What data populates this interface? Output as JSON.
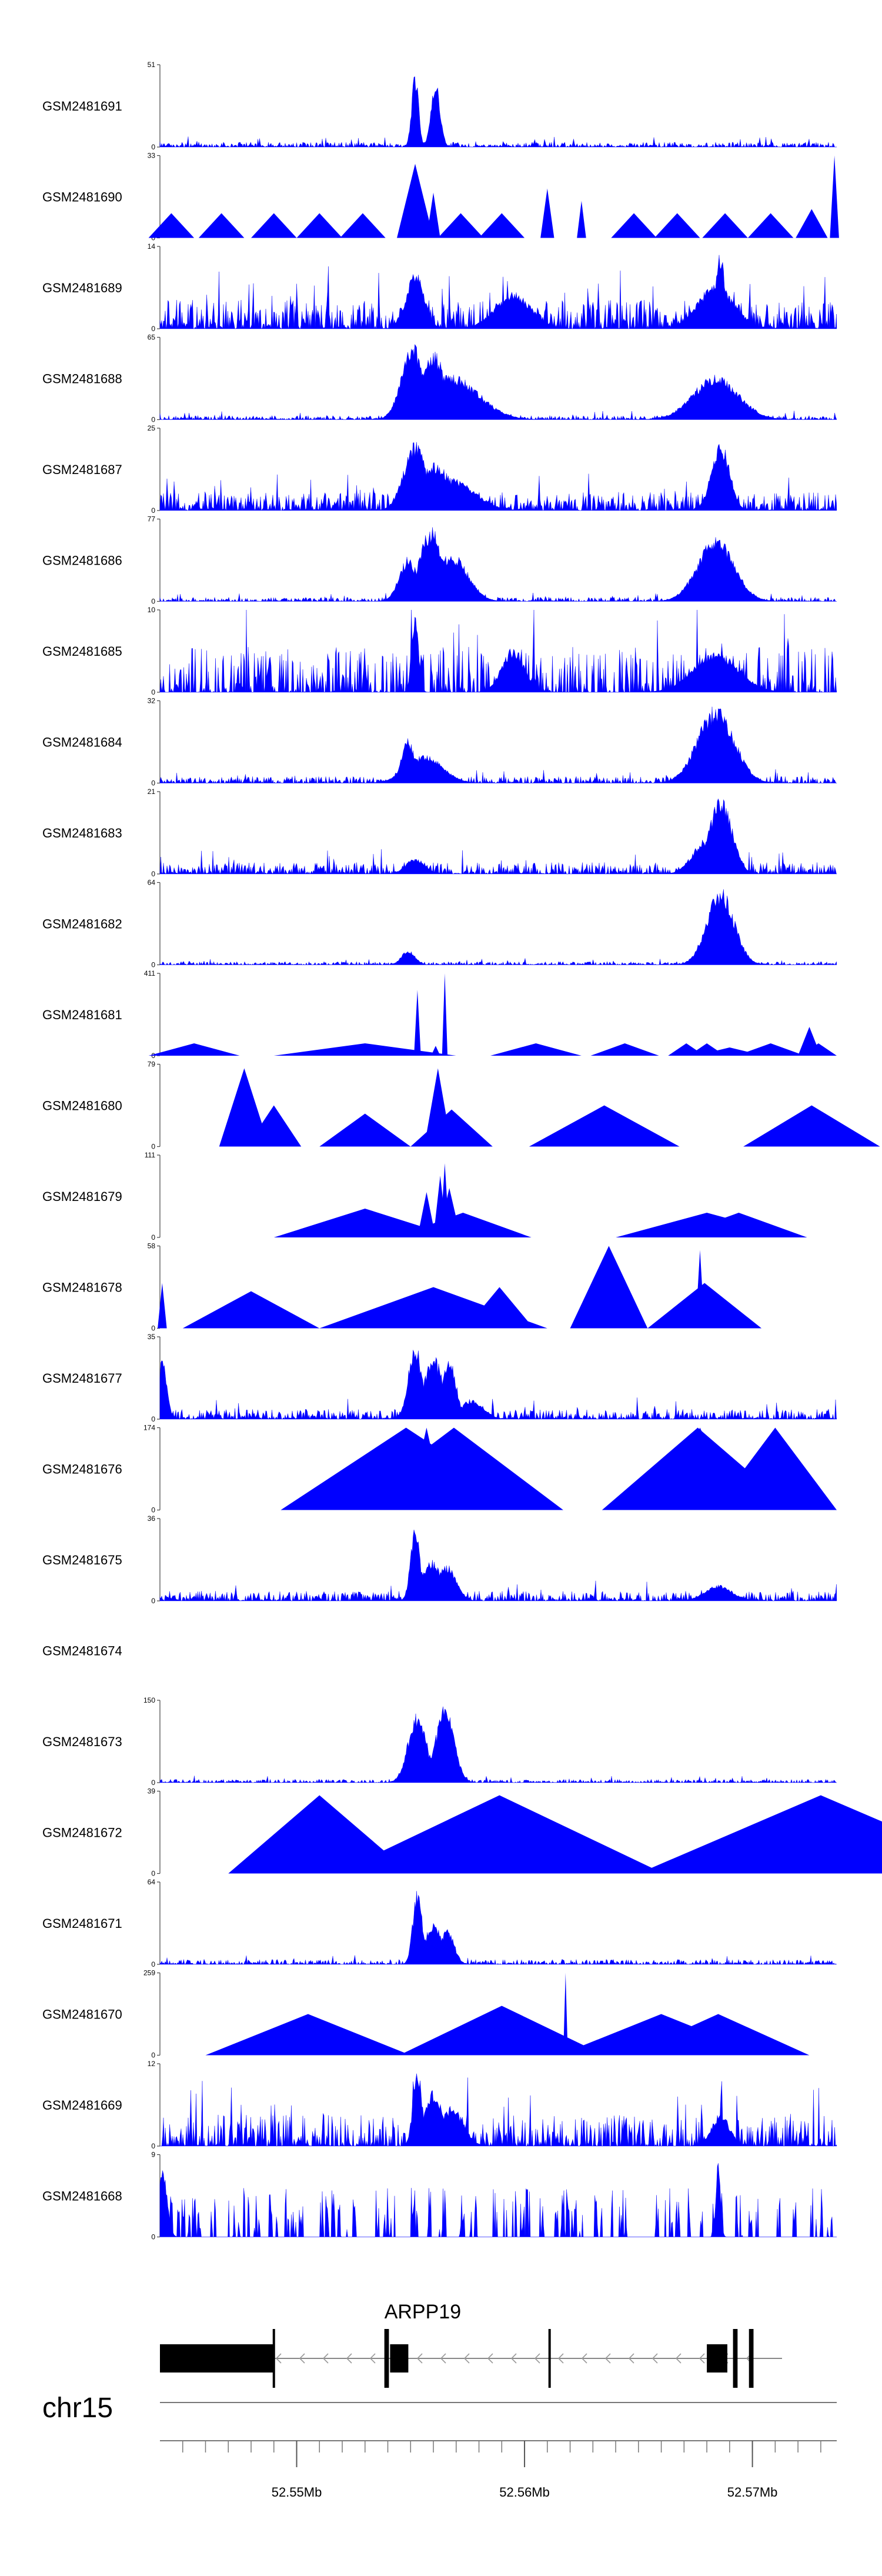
{
  "chart_data": {
    "type": "area",
    "title": "",
    "xlabel": "",
    "ylabel": "",
    "color": "#0000FF",
    "region": {
      "chrom": "chr15",
      "start_mb": 52.544,
      "end_mb": 52.5737
    },
    "x_ticks_mb": [
      52.545,
      52.55,
      52.555,
      52.56,
      52.565,
      52.57
    ],
    "x_tick_labels": [
      {
        "mb": 52.55,
        "label": "52.55Mb"
      },
      {
        "mb": 52.56,
        "label": "52.56Mb"
      },
      {
        "mb": 52.57,
        "label": "52.57Mb"
      }
    ],
    "tracks": [
      {
        "name": "GSM2481691",
        "ymax": "51",
        "ymin": "0",
        "style": "dense",
        "peaks": [
          [
            52.5552,
            0.92,
            0.00015
          ],
          [
            52.5561,
            0.8,
            0.0002
          ]
        ],
        "noise": 0.06,
        "density": 1.0
      },
      {
        "name": "GSM2481690",
        "ymax": "33",
        "ymin": "0",
        "style": "sparse-triangles",
        "tri": [
          [
            52.5445,
            0.3,
            0.001
          ],
          [
            52.5467,
            0.3,
            0.001
          ],
          [
            52.549,
            0.3,
            0.001
          ],
          [
            52.551,
            0.3,
            0.001
          ],
          [
            52.5529,
            0.3,
            0.001
          ],
          [
            52.5552,
            0.9,
            0.0008
          ],
          [
            52.556,
            0.55,
            0.0003
          ],
          [
            52.5572,
            0.3,
            0.001
          ],
          [
            52.559,
            0.3,
            0.001
          ],
          [
            52.561,
            0.6,
            0.0003
          ],
          [
            52.5625,
            0.45,
            0.0002
          ],
          [
            52.5648,
            0.3,
            0.001
          ],
          [
            52.5667,
            0.3,
            0.001
          ],
          [
            52.5688,
            0.3,
            0.001
          ],
          [
            52.5708,
            0.3,
            0.001
          ],
          [
            52.5726,
            0.35,
            0.0007
          ],
          [
            52.5736,
            1.0,
            0.0002
          ]
        ]
      },
      {
        "name": "GSM2481689",
        "ymax": "14",
        "ymin": "0",
        "style": "dense",
        "peaks": [
          [
            52.5552,
            0.7,
            0.0004
          ],
          [
            52.5595,
            0.45,
            0.0008
          ],
          [
            52.5686,
            0.95,
            0.0002
          ],
          [
            52.5684,
            0.55,
            0.0008
          ]
        ],
        "noise": 0.35,
        "density": 1.0
      },
      {
        "name": "GSM2481688",
        "ymax": "65",
        "ymin": "0",
        "style": "dense",
        "peaks": [
          [
            52.5551,
            0.95,
            0.0005
          ],
          [
            52.556,
            0.85,
            0.0005
          ],
          [
            52.5568,
            0.55,
            0.0012
          ],
          [
            52.5684,
            0.55,
            0.001
          ],
          [
            52.5677,
            0.35,
            0.0006
          ]
        ],
        "noise": 0.05,
        "density": 1.0
      },
      {
        "name": "GSM2481687",
        "ymax": "25",
        "ymin": "0",
        "style": "dense",
        "peaks": [
          [
            52.5552,
            0.85,
            0.0005
          ],
          [
            52.556,
            0.6,
            0.0008
          ],
          [
            52.5568,
            0.4,
            0.001
          ],
          [
            52.5686,
            0.85,
            0.0004
          ]
        ],
        "noise": 0.22,
        "density": 1.0
      },
      {
        "name": "GSM2481686",
        "ymax": "77",
        "ymin": "0",
        "style": "dense",
        "peaks": [
          [
            52.5549,
            0.55,
            0.0004
          ],
          [
            52.5559,
            0.92,
            0.0005
          ],
          [
            52.5568,
            0.6,
            0.0007
          ],
          [
            52.5684,
            0.8,
            0.0008
          ]
        ],
        "noise": 0.05,
        "density": 1.0
      },
      {
        "name": "GSM2481685",
        "ymax": "10",
        "ymin": "0",
        "style": "dense",
        "peaks": [
          [
            52.5552,
            0.95,
            0.00015
          ],
          [
            52.5595,
            0.55,
            0.0005
          ],
          [
            52.5684,
            0.5,
            0.001
          ]
        ],
        "noise": 0.55,
        "density": 0.7
      },
      {
        "name": "GSM2481684",
        "ymax": "32",
        "ymin": "0",
        "style": "dense",
        "peaks": [
          [
            52.5549,
            0.55,
            0.0003
          ],
          [
            52.5556,
            0.35,
            0.0008
          ],
          [
            52.5684,
            0.95,
            0.0008
          ],
          [
            52.5676,
            0.4,
            0.0005
          ]
        ],
        "noise": 0.08,
        "density": 1.0
      },
      {
        "name": "GSM2481683",
        "ymax": "21",
        "ymin": "0",
        "style": "dense",
        "peaks": [
          [
            52.5686,
            0.95,
            0.0005
          ],
          [
            52.568,
            0.45,
            0.0006
          ],
          [
            52.5552,
            0.2,
            0.0004
          ]
        ],
        "noise": 0.14,
        "density": 1.0
      },
      {
        "name": "GSM2481682",
        "ymax": "64",
        "ymin": "0",
        "style": "dense",
        "peaks": [
          [
            52.5686,
            0.95,
            0.0006
          ],
          [
            52.5549,
            0.18,
            0.0003
          ]
        ],
        "noise": 0.04,
        "density": 1.0
      },
      {
        "name": "GSM2481681",
        "ymax": "411",
        "ymin": "0",
        "style": "sparse-triangles",
        "tri": [
          [
            52.5455,
            0.15,
            0.002
          ],
          [
            52.553,
            0.15,
            0.004
          ],
          [
            52.5553,
            0.8,
            0.00015
          ],
          [
            52.5561,
            0.12,
            0.0002
          ],
          [
            52.5565,
            1.0,
            0.00012
          ],
          [
            52.5605,
            0.15,
            0.002
          ],
          [
            52.5644,
            0.15,
            0.0015
          ],
          [
            52.5671,
            0.15,
            0.0008
          ],
          [
            52.568,
            0.15,
            0.0008
          ],
          [
            52.569,
            0.1,
            0.0015
          ],
          [
            52.5708,
            0.15,
            0.0015
          ],
          [
            52.5725,
            0.35,
            0.0005
          ],
          [
            52.5729,
            0.15,
            0.0008
          ]
        ]
      },
      {
        "name": "GSM2481680",
        "ymax": "79",
        "ymin": "0",
        "style": "sparse-triangles",
        "tri": [
          [
            52.5477,
            0.95,
            0.0011
          ],
          [
            52.549,
            0.5,
            0.0012
          ],
          [
            52.553,
            0.4,
            0.002
          ],
          [
            52.5562,
            0.95,
            0.0006
          ],
          [
            52.5568,
            0.45,
            0.0018
          ],
          [
            52.5635,
            0.5,
            0.0033
          ],
          [
            52.5726,
            0.5,
            0.003
          ]
        ]
      },
      {
        "name": "GSM2481679",
        "ymax": "111",
        "ymin": "0",
        "style": "sparse-triangles",
        "tri": [
          [
            52.553,
            0.35,
            0.004
          ],
          [
            52.5557,
            0.55,
            0.0004
          ],
          [
            52.5563,
            0.75,
            0.0003
          ],
          [
            52.5565,
            0.9,
            0.0002
          ],
          [
            52.5567,
            0.6,
            0.0005
          ],
          [
            52.5573,
            0.3,
            0.003
          ],
          [
            52.568,
            0.3,
            0.004
          ],
          [
            52.5694,
            0.3,
            0.003
          ]
        ]
      },
      {
        "name": "GSM2481678",
        "ymax": "58",
        "ymin": "0",
        "style": "sparse-triangles",
        "tri": [
          [
            52.5441,
            0.55,
            0.0002
          ],
          [
            52.548,
            0.45,
            0.003
          ],
          [
            52.556,
            0.5,
            0.005
          ],
          [
            52.5589,
            0.5,
            0.0015
          ],
          [
            52.5637,
            1.0,
            0.0017
          ],
          [
            52.5677,
            0.95,
            0.0002
          ],
          [
            52.5679,
            0.55,
            0.0025
          ]
        ]
      },
      {
        "name": "GSM2481677",
        "ymax": "35",
        "ymin": "0",
        "style": "dense",
        "peaks": [
          [
            52.5441,
            0.75,
            0.0002
          ],
          [
            52.5552,
            0.95,
            0.0003
          ],
          [
            52.556,
            0.8,
            0.0004
          ],
          [
            52.5567,
            0.75,
            0.0003
          ],
          [
            52.5577,
            0.25,
            0.0005
          ]
        ],
        "noise": 0.12,
        "density": 1.0
      },
      {
        "name": "GSM2481676",
        "ymax": "174",
        "ymin": "0",
        "style": "sparse-triangles",
        "tri": [
          [
            52.5548,
            1.0,
            0.0055
          ],
          [
            52.5557,
            1.0,
            0.0008
          ],
          [
            52.5569,
            1.0,
            0.0048
          ],
          [
            52.5676,
            1.0,
            0.0042
          ],
          [
            52.5677,
            1.0,
            0.0017
          ],
          [
            52.571,
            1.0,
            0.0027
          ]
        ]
      },
      {
        "name": "GSM2481675",
        "ymax": "36",
        "ymin": "0",
        "style": "dense",
        "peaks": [
          [
            52.5552,
            0.95,
            0.0002
          ],
          [
            52.5559,
            0.5,
            0.0005
          ],
          [
            52.5566,
            0.45,
            0.0004
          ],
          [
            52.5685,
            0.2,
            0.0006
          ]
        ],
        "noise": 0.12,
        "density": 1.0
      },
      {
        "name": "GSM2481674",
        "ymax": "",
        "ymin": "",
        "style": "empty"
      },
      {
        "name": "GSM2481673",
        "ymax": "150",
        "ymin": "0",
        "style": "dense",
        "peaks": [
          [
            52.5553,
            0.9,
            0.0004
          ],
          [
            52.5565,
            0.95,
            0.0004
          ]
        ],
        "noise": 0.04,
        "density": 1.0
      },
      {
        "name": "GSM2481672",
        "ymax": "39",
        "ymin": "0",
        "style": "sparse-triangles",
        "tri": [
          [
            52.551,
            0.95,
            0.004
          ],
          [
            52.5589,
            0.95,
            0.0072
          ],
          [
            52.573,
            0.95,
            0.008
          ],
          [
            52.5736,
            0.6,
            0.0004
          ]
        ]
      },
      {
        "name": "GSM2481671",
        "ymax": "64",
        "ymin": "0",
        "style": "dense",
        "peaks": [
          [
            52.5553,
            0.95,
            0.0002
          ],
          [
            52.556,
            0.5,
            0.0004
          ],
          [
            52.5566,
            0.45,
            0.0003
          ]
        ],
        "noise": 0.06,
        "density": 1.0
      },
      {
        "name": "GSM2481670",
        "ymax": "259",
        "ymin": "0",
        "style": "sparse-triangles",
        "tri": [
          [
            52.5505,
            0.5,
            0.0045
          ],
          [
            52.559,
            0.6,
            0.0045
          ],
          [
            52.5618,
            1.0,
            0.0001
          ],
          [
            52.566,
            0.5,
            0.0045
          ],
          [
            52.5685,
            0.5,
            0.004
          ]
        ]
      },
      {
        "name": "GSM2481669",
        "ymax": "12",
        "ymin": "0",
        "style": "dense",
        "peaks": [
          [
            52.5553,
            0.95,
            0.0002
          ],
          [
            52.556,
            0.7,
            0.0004
          ],
          [
            52.5568,
            0.5,
            0.0005
          ],
          [
            52.5686,
            0.4,
            0.0004
          ]
        ],
        "noise": 0.38,
        "density": 0.85
      },
      {
        "name": "GSM2481668",
        "ymax": "9",
        "ymin": "0",
        "style": "spiky",
        "noise": 0.6,
        "density": 0.55,
        "peaks": [
          [
            52.5441,
            0.95,
            0.0002
          ],
          [
            52.5685,
            0.98,
            0.0001
          ]
        ]
      }
    ],
    "gene": {
      "name": "ARPP19",
      "strand": "-",
      "line_start_mb": 52.544,
      "line_end_mb": 52.5713,
      "exons": [
        {
          "start_mb": 52.544,
          "end_mb": 52.549,
          "type": "utr"
        },
        {
          "start_mb": 52.549,
          "end_mb": 52.5491,
          "type": "cds"
        },
        {
          "start_mb": 52.5539,
          "end_mb": 52.5541,
          "type": "cds"
        },
        {
          "start_mb": 52.5541,
          "end_mb": 52.5549,
          "type": "utr"
        },
        {
          "start_mb": 52.5611,
          "end_mb": 52.5612,
          "type": "cds"
        },
        {
          "start_mb": 52.568,
          "end_mb": 52.5689,
          "type": "utr"
        },
        {
          "start_mb": 52.5692,
          "end_mb": 52.5694,
          "type": "cds"
        },
        {
          "start_mb": 52.5699,
          "end_mb": 52.5701,
          "type": "cds"
        }
      ]
    }
  }
}
